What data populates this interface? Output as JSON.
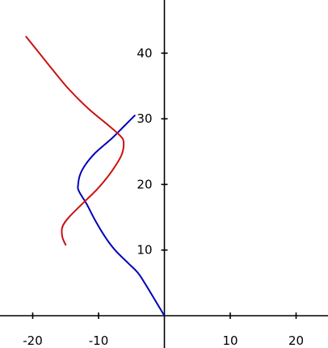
{
  "chart_data": {
    "type": "line",
    "title": "",
    "xlabel": "",
    "ylabel": "",
    "xlim": [
      -25,
      25
    ],
    "ylim": [
      -2,
      48
    ],
    "grid": false,
    "x_ticks": [
      -20,
      -10,
      10,
      20
    ],
    "y_ticks": [
      10,
      20,
      30,
      40
    ],
    "x_tick_labels": [
      "-20",
      "-10",
      "10",
      "20"
    ],
    "y_tick_labels": [
      "10",
      "20",
      "30",
      "40"
    ],
    "series": [
      {
        "color": "#0000bb",
        "points": [
          [
            0.0,
            0.0
          ],
          [
            -1.2,
            2.0
          ],
          [
            -2.7,
            4.5
          ],
          [
            -4.0,
            6.5
          ],
          [
            -5.5,
            8.0
          ],
          [
            -7.5,
            10.0
          ],
          [
            -9.0,
            12.0
          ],
          [
            -10.5,
            14.5
          ],
          [
            -11.8,
            17.0
          ],
          [
            -13.0,
            19.0
          ],
          [
            -13.1,
            20.0
          ],
          [
            -12.8,
            21.5
          ],
          [
            -12.0,
            23.0
          ],
          [
            -10.5,
            24.8
          ],
          [
            -8.0,
            27.0
          ],
          [
            -6.0,
            29.0
          ],
          [
            -4.5,
            30.5
          ]
        ]
      },
      {
        "color": "#cc1111",
        "points": [
          [
            -15.0,
            10.8
          ],
          [
            -15.5,
            12.0
          ],
          [
            -15.5,
            13.5
          ],
          [
            -14.5,
            15.0
          ],
          [
            -12.0,
            17.5
          ],
          [
            -10.0,
            19.5
          ],
          [
            -8.0,
            22.0
          ],
          [
            -6.5,
            24.5
          ],
          [
            -6.2,
            26.5
          ],
          [
            -6.8,
            27.5
          ],
          [
            -8.5,
            29.0
          ],
          [
            -11.5,
            31.5
          ],
          [
            -14.5,
            34.5
          ],
          [
            -17.0,
            37.5
          ],
          [
            -19.0,
            40.0
          ],
          [
            -21.0,
            42.5
          ]
        ]
      }
    ]
  }
}
